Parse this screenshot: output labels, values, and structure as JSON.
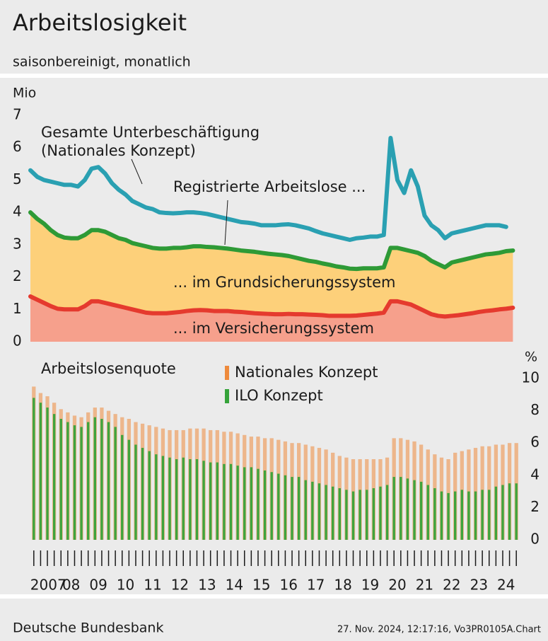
{
  "header": {
    "title": "Arbeitslosigkeit",
    "subtitle": "saisonbereinigt, monatlich"
  },
  "chart_data": [
    {
      "type": "area",
      "ylabel": "Mio",
      "ylim": [
        0,
        7
      ],
      "yticks": [
        0,
        1,
        2,
        3,
        4,
        5,
        6,
        7
      ],
      "xlim": [
        2007,
        2025
      ],
      "xgrid": [
        2009,
        2014,
        2019,
        2024
      ],
      "grid": true,
      "annotations": [
        "Gesamte Unterbeschäftigung",
        "(Nationales Konzept)",
        "Registrierte Arbeitslose ...",
        "... im Grundsicherungssystem",
        "... im Versicherungssystem"
      ],
      "x": [
        2007,
        2007.25,
        2007.5,
        2007.75,
        2008,
        2008.25,
        2008.5,
        2008.75,
        2009,
        2009.25,
        2009.5,
        2009.75,
        2010,
        2010.25,
        2010.5,
        2010.75,
        2011,
        2011.25,
        2011.5,
        2011.75,
        2012,
        2012.25,
        2012.5,
        2012.75,
        2013,
        2013.25,
        2013.5,
        2013.75,
        2014,
        2014.25,
        2014.5,
        2014.75,
        2015,
        2015.25,
        2015.5,
        2015.75,
        2016,
        2016.25,
        2016.5,
        2016.75,
        2017,
        2017.25,
        2017.5,
        2017.75,
        2018,
        2018.25,
        2018.5,
        2018.75,
        2019,
        2019.25,
        2019.5,
        2019.75,
        2020,
        2020.25,
        2020.5,
        2020.75,
        2021,
        2021.25,
        2021.5,
        2021.75,
        2022,
        2022.25,
        2022.5,
        2022.75,
        2023,
        2023.25,
        2023.5,
        2023.75,
        2024,
        2024.25,
        2024.5,
        2024.75
      ],
      "series": [
        {
          "color": "#2aa0b2",
          "values": [
            5.3,
            5.1,
            5.0,
            4.95,
            4.9,
            4.85,
            4.85,
            4.8,
            5.0,
            5.35,
            5.4,
            5.2,
            4.9,
            4.7,
            4.55,
            4.35,
            4.25,
            4.15,
            4.1,
            4.0,
            3.98,
            3.97,
            3.98,
            4.0,
            4.0,
            3.98,
            3.95,
            3.9,
            3.85,
            3.8,
            3.75,
            3.7,
            3.68,
            3.65,
            3.6,
            3.6,
            3.6,
            3.62,
            3.63,
            3.6,
            3.55,
            3.5,
            3.42,
            3.35,
            3.3,
            3.25,
            3.2,
            3.15,
            3.2,
            3.22,
            3.25,
            3.25,
            3.3,
            6.3,
            5.0,
            4.6,
            5.3,
            4.8,
            3.9,
            3.6,
            3.45,
            3.2,
            3.35,
            3.4,
            3.45,
            3.5,
            3.55,
            3.6,
            3.6,
            3.6,
            3.55,
            null
          ]
        },
        {
          "color": "#2e9a36",
          "fill": "#fdd07a",
          "values": [
            4.0,
            3.8,
            3.65,
            3.45,
            3.3,
            3.22,
            3.2,
            3.2,
            3.3,
            3.45,
            3.45,
            3.4,
            3.3,
            3.2,
            3.15,
            3.05,
            3.0,
            2.95,
            2.9,
            2.88,
            2.88,
            2.9,
            2.9,
            2.92,
            2.95,
            2.95,
            2.93,
            2.92,
            2.9,
            2.88,
            2.85,
            2.82,
            2.8,
            2.78,
            2.75,
            2.72,
            2.7,
            2.68,
            2.65,
            2.6,
            2.55,
            2.5,
            2.47,
            2.42,
            2.38,
            2.33,
            2.3,
            2.26,
            2.25,
            2.27,
            2.27,
            2.27,
            2.3,
            2.9,
            2.9,
            2.85,
            2.8,
            2.75,
            2.65,
            2.5,
            2.4,
            2.3,
            2.45,
            2.5,
            2.55,
            2.6,
            2.65,
            2.7,
            2.72,
            2.75,
            2.8,
            2.82
          ]
        },
        {
          "color": "#e53a2e",
          "fill": "#f6a08c",
          "values": [
            1.4,
            1.3,
            1.2,
            1.1,
            1.02,
            1.0,
            1.0,
            1.0,
            1.1,
            1.25,
            1.25,
            1.2,
            1.15,
            1.1,
            1.05,
            1.0,
            0.95,
            0.9,
            0.88,
            0.88,
            0.88,
            0.9,
            0.92,
            0.95,
            0.97,
            0.98,
            0.97,
            0.95,
            0.95,
            0.95,
            0.93,
            0.92,
            0.9,
            0.88,
            0.87,
            0.86,
            0.85,
            0.85,
            0.86,
            0.85,
            0.85,
            0.84,
            0.83,
            0.82,
            0.8,
            0.8,
            0.8,
            0.8,
            0.81,
            0.83,
            0.85,
            0.87,
            0.9,
            1.25,
            1.25,
            1.2,
            1.15,
            1.05,
            0.95,
            0.85,
            0.8,
            0.78,
            0.8,
            0.82,
            0.85,
            0.88,
            0.92,
            0.95,
            0.97,
            1.0,
            1.02,
            1.05
          ]
        }
      ]
    },
    {
      "type": "bar",
      "title": "Arbeitslosenquote",
      "ylabel": "%",
      "ylim": [
        0,
        10
      ],
      "yticks": [
        0,
        2,
        4,
        6,
        8,
        10
      ],
      "xlim": [
        2007,
        2025
      ],
      "grid": true,
      "xticks": [
        {
          "value": 2007.5,
          "label": "2007"
        },
        {
          "value": 2008.5,
          "label": "08"
        },
        {
          "value": 2009.5,
          "label": "09"
        },
        {
          "value": 2010.5,
          "label": "10"
        },
        {
          "value": 2011.5,
          "label": "11"
        },
        {
          "value": 2012.5,
          "label": "12"
        },
        {
          "value": 2013.5,
          "label": "13"
        },
        {
          "value": 2014.5,
          "label": "14"
        },
        {
          "value": 2015.5,
          "label": "15"
        },
        {
          "value": 2016.5,
          "label": "16"
        },
        {
          "value": 2017.5,
          "label": "17"
        },
        {
          "value": 2018.5,
          "label": "18"
        },
        {
          "value": 2019.5,
          "label": "19"
        },
        {
          "value": 2020.5,
          "label": "20"
        },
        {
          "value": 2021.5,
          "label": "21"
        },
        {
          "value": 2022.5,
          "label": "22"
        },
        {
          "value": 2023.5,
          "label": "23"
        },
        {
          "value": 2024.5,
          "label": "24"
        }
      ],
      "x": [
        2007,
        2007.25,
        2007.5,
        2007.75,
        2008,
        2008.25,
        2008.5,
        2008.75,
        2009,
        2009.25,
        2009.5,
        2009.75,
        2010,
        2010.25,
        2010.5,
        2010.75,
        2011,
        2011.25,
        2011.5,
        2011.75,
        2012,
        2012.25,
        2012.5,
        2012.75,
        2013,
        2013.25,
        2013.5,
        2013.75,
        2014,
        2014.25,
        2014.5,
        2014.75,
        2015,
        2015.25,
        2015.5,
        2015.75,
        2016,
        2016.25,
        2016.5,
        2016.75,
        2017,
        2017.25,
        2017.5,
        2017.75,
        2018,
        2018.25,
        2018.5,
        2018.75,
        2019,
        2019.25,
        2019.5,
        2019.75,
        2020,
        2020.25,
        2020.5,
        2020.75,
        2021,
        2021.25,
        2021.5,
        2021.75,
        2022,
        2022.25,
        2022.5,
        2022.75,
        2023,
        2023.25,
        2023.5,
        2023.75,
        2024,
        2024.25,
        2024.5,
        2024.75
      ],
      "series": [
        {
          "name": "Nationales Konzept",
          "color": "#ee8a3c",
          "values": [
            9.5,
            9.1,
            8.9,
            8.5,
            8.1,
            7.9,
            7.7,
            7.6,
            7.9,
            8.2,
            8.2,
            8.0,
            7.8,
            7.6,
            7.5,
            7.3,
            7.2,
            7.1,
            7.0,
            6.9,
            6.8,
            6.8,
            6.8,
            6.9,
            6.9,
            6.9,
            6.8,
            6.8,
            6.7,
            6.7,
            6.6,
            6.5,
            6.4,
            6.4,
            6.3,
            6.3,
            6.2,
            6.1,
            6.0,
            6.0,
            5.9,
            5.8,
            5.7,
            5.6,
            5.4,
            5.2,
            5.1,
            5.0,
            5.0,
            5.0,
            5.0,
            5.0,
            5.1,
            6.3,
            6.3,
            6.2,
            6.1,
            5.9,
            5.6,
            5.3,
            5.1,
            5.0,
            5.4,
            5.5,
            5.6,
            5.7,
            5.8,
            5.8,
            5.9,
            5.9,
            6.0,
            6.0
          ]
        },
        {
          "name": "ILO Konzept",
          "color": "#35a33a",
          "values": [
            8.8,
            8.5,
            8.2,
            7.8,
            7.5,
            7.3,
            7.1,
            7.0,
            7.3,
            7.6,
            7.5,
            7.3,
            7.0,
            6.5,
            6.2,
            5.9,
            5.7,
            5.5,
            5.3,
            5.2,
            5.1,
            5.0,
            5.1,
            5.0,
            5.0,
            4.9,
            4.8,
            4.8,
            4.7,
            4.7,
            4.6,
            4.5,
            4.5,
            4.4,
            4.3,
            4.2,
            4.1,
            4.0,
            3.9,
            3.9,
            3.7,
            3.6,
            3.5,
            3.4,
            3.3,
            3.2,
            3.1,
            3.0,
            3.1,
            3.1,
            3.2,
            3.3,
            3.4,
            3.9,
            3.9,
            3.8,
            3.7,
            3.6,
            3.4,
            3.2,
            3.0,
            2.9,
            3.0,
            3.1,
            3.0,
            3.0,
            3.1,
            3.1,
            3.3,
            3.4,
            3.5,
            3.5
          ]
        }
      ]
    }
  ],
  "footer": {
    "source": "Deutsche Bundesbank",
    "timestamp": "27. Nov. 2024, 12:17:16, Vo3PR0105A.Chart"
  }
}
